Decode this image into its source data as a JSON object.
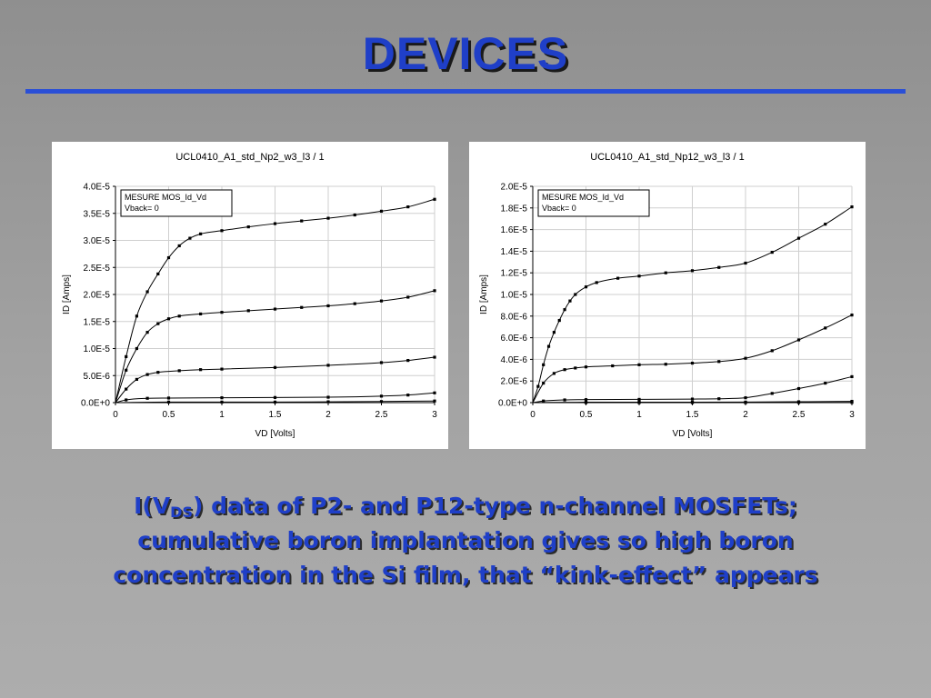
{
  "slide": {
    "title": "DEVICES",
    "caption": {
      "part1": "I(V",
      "sub": "DS",
      "part2": ") data of P2- and P12-type n-channel MOSFETs;",
      "line2": "cumulative boron implantation gives so high boron",
      "line3": "concentration in the Si film, that “kink-effect” appears"
    },
    "colors": {
      "accent": "#1f3fc8",
      "rule": "#2a4fd6"
    }
  },
  "chart_data": [
    {
      "type": "line",
      "title": "UCL0410_A1_std_Np2_w3_l3 / 1",
      "xlabel": "VD [Volts]",
      "ylabel": "ID [Amps]",
      "xlim": [
        0,
        3
      ],
      "ylim": [
        0,
        4e-05
      ],
      "xticks": [
        0,
        0.5,
        1,
        1.5,
        2,
        2.5,
        3
      ],
      "xtick_labels": [
        "0",
        "0.5",
        "1",
        "1.5",
        "2",
        "2.5",
        "3"
      ],
      "yticks": [
        0,
        5e-06,
        1e-05,
        1.5e-05,
        2e-05,
        2.5e-05,
        3e-05,
        3.5e-05,
        4e-05
      ],
      "ytick_labels": [
        "0.0E+0",
        "5.0E-6",
        "1.0E-5",
        "1.5E-5",
        "2.0E-5",
        "2.5E-5",
        "3.0E-5",
        "3.5E-5",
        "4.0E-5"
      ],
      "grid": true,
      "legend_lines": [
        "MESURE MOS_Id_Vd",
        "Vback= 0"
      ],
      "legend_position": "top-left",
      "series": [
        {
          "x": [
            0,
            0.1,
            0.2,
            0.3,
            0.4,
            0.5,
            0.6,
            0.7,
            0.8,
            1.0,
            1.25,
            1.5,
            1.75,
            2.0,
            2.25,
            2.5,
            2.75,
            3.0
          ],
          "y": [
            0,
            8.5e-06,
            1.6e-05,
            2.05e-05,
            2.38e-05,
            2.68e-05,
            2.9e-05,
            3.04e-05,
            3.12e-05,
            3.18e-05,
            3.25e-05,
            3.31e-05,
            3.36e-05,
            3.41e-05,
            3.47e-05,
            3.54e-05,
            3.62e-05,
            3.76e-05
          ]
        },
        {
          "x": [
            0,
            0.1,
            0.2,
            0.3,
            0.4,
            0.5,
            0.6,
            0.8,
            1.0,
            1.25,
            1.5,
            1.75,
            2.0,
            2.25,
            2.5,
            2.75,
            3.0
          ],
          "y": [
            0,
            6e-06,
            1e-05,
            1.3e-05,
            1.46e-05,
            1.55e-05,
            1.6e-05,
            1.64e-05,
            1.67e-05,
            1.7e-05,
            1.73e-05,
            1.76e-05,
            1.79e-05,
            1.83e-05,
            1.88e-05,
            1.95e-05,
            2.07e-05
          ]
        },
        {
          "x": [
            0,
            0.1,
            0.2,
            0.3,
            0.4,
            0.6,
            0.8,
            1.0,
            1.5,
            2.0,
            2.5,
            2.75,
            3.0
          ],
          "y": [
            0,
            2.5e-06,
            4.3e-06,
            5.2e-06,
            5.6e-06,
            5.9e-06,
            6.1e-06,
            6.2e-06,
            6.5e-06,
            6.9e-06,
            7.4e-06,
            7.8e-06,
            8.4e-06
          ]
        },
        {
          "x": [
            0,
            0.1,
            0.3,
            0.5,
            1.0,
            1.5,
            2.0,
            2.5,
            2.75,
            3.0
          ],
          "y": [
            0,
            5e-07,
            8e-07,
            8.5e-07,
            9e-07,
            9.5e-07,
            1e-06,
            1.2e-06,
            1.4e-06,
            1.8e-06
          ]
        },
        {
          "x": [
            0,
            0.5,
            1.0,
            1.5,
            2.0,
            2.5,
            3.0
          ],
          "y": [
            0,
            1e-07,
            1e-07,
            1e-07,
            1.5e-07,
            2e-07,
            3e-07
          ]
        }
      ]
    },
    {
      "type": "line",
      "title": "UCL0410_A1_std_Np12_w3_l3 / 1",
      "xlabel": "VD [Volts]",
      "ylabel": "ID [Amps]",
      "xlim": [
        0,
        3
      ],
      "ylim": [
        0,
        2e-05
      ],
      "xticks": [
        0,
        0.5,
        1,
        1.5,
        2,
        2.5,
        3
      ],
      "xtick_labels": [
        "0",
        "0.5",
        "1",
        "1.5",
        "2",
        "2.5",
        "3"
      ],
      "yticks": [
        0,
        2e-06,
        4e-06,
        6e-06,
        8e-06,
        1e-05,
        1.2e-05,
        1.4e-05,
        1.6e-05,
        1.8e-05,
        2e-05
      ],
      "ytick_labels": [
        "0.0E+0",
        "2.0E-6",
        "4.0E-6",
        "6.0E-6",
        "8.0E-6",
        "1.0E-5",
        "1.2E-5",
        "1.4E-5",
        "1.6E-5",
        "1.8E-5",
        "2.0E-5"
      ],
      "grid": true,
      "legend_lines": [
        "MESURE MOS_Id_Vd",
        "Vback= 0"
      ],
      "legend_position": "top-left",
      "series": [
        {
          "x": [
            0,
            0.05,
            0.1,
            0.15,
            0.2,
            0.25,
            0.3,
            0.35,
            0.4,
            0.5,
            0.6,
            0.8,
            1.0,
            1.25,
            1.5,
            1.75,
            2.0,
            2.25,
            2.5,
            2.75,
            3.0
          ],
          "y": [
            0,
            1.5e-06,
            3.5e-06,
            5.2e-06,
            6.5e-06,
            7.6e-06,
            8.6e-06,
            9.4e-06,
            1e-05,
            1.07e-05,
            1.11e-05,
            1.15e-05,
            1.17e-05,
            1.2e-05,
            1.22e-05,
            1.25e-05,
            1.29e-05,
            1.39e-05,
            1.52e-05,
            1.65e-05,
            1.81e-05
          ]
        },
        {
          "x": [
            0,
            0.1,
            0.2,
            0.3,
            0.4,
            0.5,
            0.75,
            1.0,
            1.25,
            1.5,
            1.75,
            2.0,
            2.25,
            2.5,
            2.75,
            3.0
          ],
          "y": [
            0,
            1.8e-06,
            2.7e-06,
            3.05e-06,
            3.2e-06,
            3.3e-06,
            3.4e-06,
            3.5e-06,
            3.55e-06,
            3.65e-06,
            3.8e-06,
            4.1e-06,
            4.8e-06,
            5.8e-06,
            6.9e-06,
            8.1e-06
          ]
        },
        {
          "x": [
            0,
            0.1,
            0.3,
            0.5,
            1.0,
            1.5,
            1.75,
            2.0,
            2.25,
            2.5,
            2.75,
            3.0
          ],
          "y": [
            0,
            1.5e-07,
            2.5e-07,
            2.8e-07,
            3e-07,
            3.3e-07,
            3.6e-07,
            4.5e-07,
            8.5e-07,
            1.3e-06,
            1.8e-06,
            2.4e-06
          ]
        },
        {
          "x": [
            0,
            0.5,
            1.0,
            1.5,
            2.0,
            2.5,
            3.0
          ],
          "y": [
            0,
            4e-08,
            4e-08,
            4e-08,
            5e-08,
            8e-08,
            1.2e-07
          ]
        },
        {
          "x": [
            0,
            0.5,
            1.0,
            1.5,
            2.0,
            2.5,
            3.0
          ],
          "y": [
            0,
            0,
            0,
            0,
            0,
            1e-08,
            2e-08
          ]
        }
      ]
    }
  ]
}
